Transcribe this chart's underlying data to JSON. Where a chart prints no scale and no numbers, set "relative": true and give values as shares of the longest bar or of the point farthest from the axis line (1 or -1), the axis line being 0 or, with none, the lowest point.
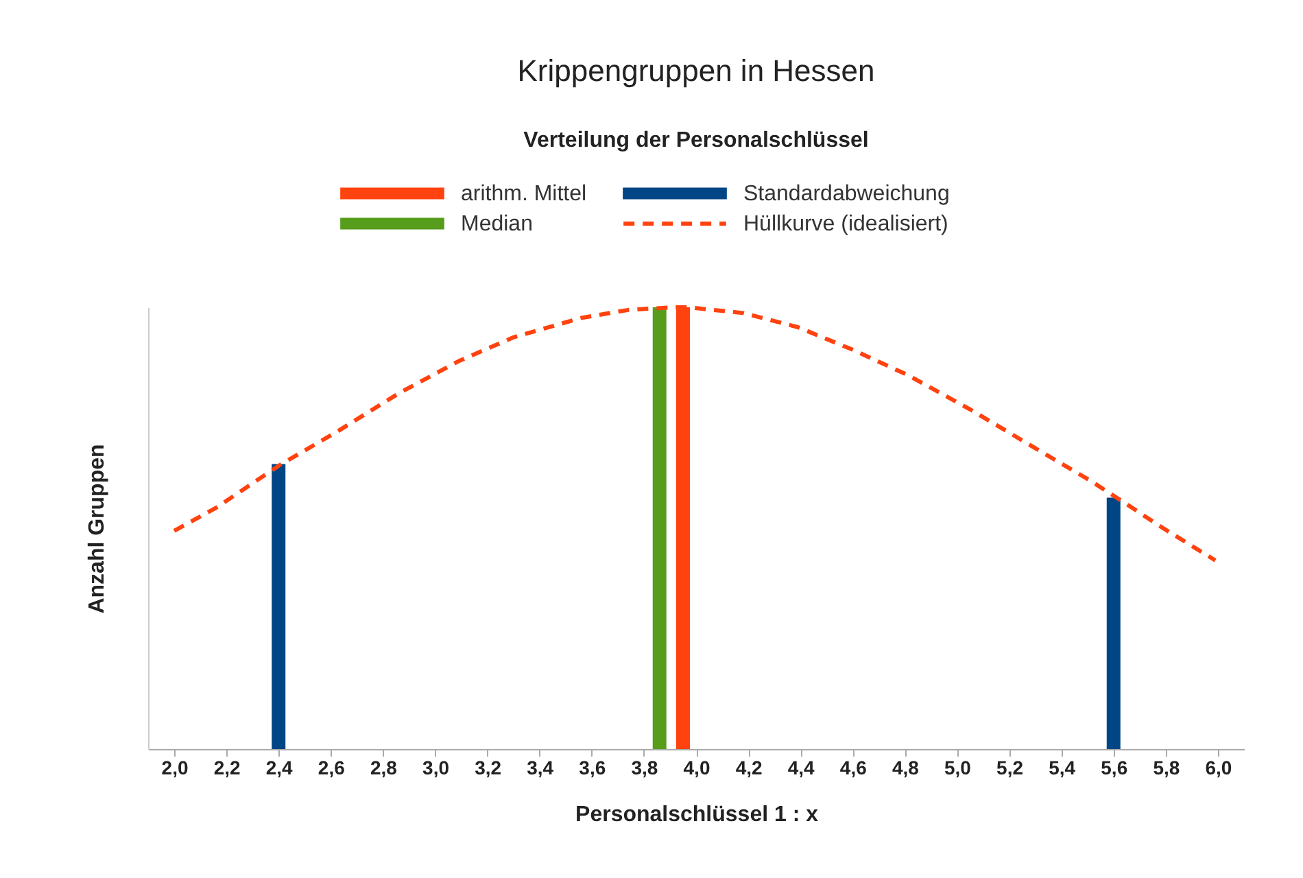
{
  "chart_data": {
    "type": "bar",
    "title": "Krippengruppen in Hessen",
    "subtitle": "Verteilung der Personalschlüssel",
    "xlabel": "Personalschlüssel  1 : x",
    "ylabel": "Anzahl Gruppen",
    "relative": true,
    "legend": "top",
    "grid": false,
    "xlim": [
      1.9,
      6.1
    ],
    "xticks": [
      {
        "value": 2.0,
        "label": "2,0"
      },
      {
        "value": 2.2,
        "label": "2,2"
      },
      {
        "value": 2.4,
        "label": "2,4"
      },
      {
        "value": 2.6,
        "label": "2,6"
      },
      {
        "value": 2.8,
        "label": "2,8"
      },
      {
        "value": 3.0,
        "label": "3,0"
      },
      {
        "value": 3.2,
        "label": "3,2"
      },
      {
        "value": 3.4,
        "label": "3,4"
      },
      {
        "value": 3.6,
        "label": "3,6"
      },
      {
        "value": 3.8,
        "label": "3,8"
      },
      {
        "value": 4.0,
        "label": "4,0"
      },
      {
        "value": 4.2,
        "label": "4,2"
      },
      {
        "value": 4.4,
        "label": "4,4"
      },
      {
        "value": 4.6,
        "label": "4,6"
      },
      {
        "value": 4.8,
        "label": "4,8"
      },
      {
        "value": 5.0,
        "label": "5,0"
      },
      {
        "value": 5.2,
        "label": "5,2"
      },
      {
        "value": 5.4,
        "label": "5,4"
      },
      {
        "value": 5.6,
        "label": "5,6"
      },
      {
        "value": 5.8,
        "label": "5,8"
      },
      {
        "value": 6.0,
        "label": "6,0"
      }
    ],
    "series": [
      {
        "name": "arithm. Mittel",
        "color": "#ff420e",
        "x": [
          3.95
        ],
        "values": [
          1.0
        ]
      },
      {
        "name": "Standardabweichung",
        "color": "#004586",
        "x": [
          2.4,
          5.6
        ],
        "values": [
          0.645,
          0.569
        ]
      },
      {
        "name": "Median",
        "color": "#579d1c",
        "x": [
          3.86
        ],
        "values": [
          1.0
        ]
      },
      {
        "name": "Hüllkurve (idealisiert)",
        "type": "line",
        "line_style": "dashed",
        "color": "#ff420e",
        "x": [
          2.0,
          2.16,
          2.41,
          2.62,
          2.86,
          3.09,
          3.3,
          3.56,
          3.74,
          3.91,
          3.97,
          4.18,
          4.39,
          4.6,
          4.81,
          5.05,
          5.3,
          5.51,
          5.63,
          5.79,
          5.99
        ],
        "values": [
          0.494,
          0.546,
          0.645,
          0.717,
          0.805,
          0.878,
          0.932,
          0.976,
          0.994,
          1.0,
          1.0,
          0.987,
          0.955,
          0.904,
          0.847,
          0.769,
          0.681,
          0.608,
          0.562,
          0.5,
          0.427
        ]
      }
    ]
  }
}
